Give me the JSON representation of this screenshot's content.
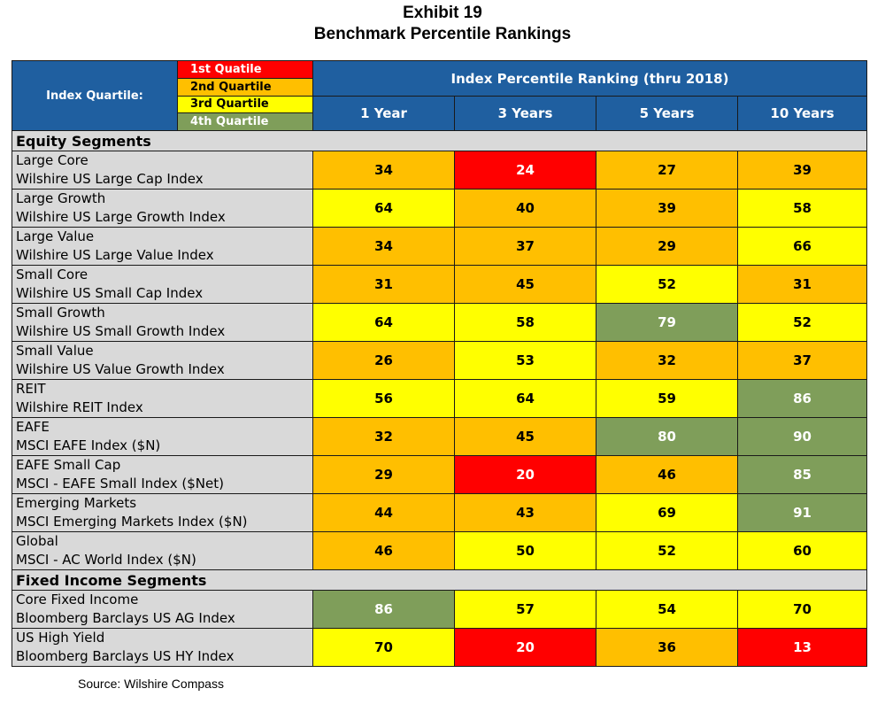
{
  "title": "Exhibit 19",
  "subtitle": "Benchmark Percentile Rankings",
  "header": {
    "quartile_label": "Index Quartile:",
    "legend": [
      "1st Quatile",
      "2nd Quartile",
      "3rd Quartile",
      "4th Quartile"
    ],
    "group_label": "Index Percentile Ranking (thru 2018)",
    "columns": [
      "1 Year",
      "3 Years",
      "5 Years",
      "10 Years"
    ]
  },
  "colors": {
    "q1": "#ff0000",
    "q2": "#ffbf00",
    "q3": "#ffff00",
    "q4": "#7f9e5a",
    "header": "#1f5fa0",
    "label_bg": "#d9d9d9"
  },
  "sections": [
    {
      "label": "Equity Segments",
      "rows": [
        {
          "name": "Large Core",
          "index": "Wilshire US Large Cap Index",
          "values": [
            "34",
            "24",
            "27",
            "39"
          ],
          "quartiles": [
            2,
            1,
            2,
            2
          ]
        },
        {
          "name": "Large Growth",
          "index": "Wilshire US Large Growth Index",
          "values": [
            "64",
            "40",
            "39",
            "58"
          ],
          "quartiles": [
            3,
            2,
            2,
            3
          ]
        },
        {
          "name": "Large Value",
          "index": "Wilshire US Large Value Index",
          "values": [
            "34",
            "37",
            "29",
            "66"
          ],
          "quartiles": [
            2,
            2,
            2,
            3
          ]
        },
        {
          "name": "Small Core",
          "index": "Wilshire US Small Cap Index",
          "values": [
            "31",
            "45",
            "52",
            "31"
          ],
          "quartiles": [
            2,
            2,
            3,
            2
          ]
        },
        {
          "name": "Small Growth",
          "index": "Wilshire US Small Growth Index",
          "values": [
            "64",
            "58",
            "79",
            "52"
          ],
          "quartiles": [
            3,
            3,
            4,
            3
          ]
        },
        {
          "name": "Small Value",
          "index": "Wilshire US Value Growth Index",
          "values": [
            "26",
            "53",
            "32",
            "37"
          ],
          "quartiles": [
            2,
            3,
            2,
            2
          ]
        },
        {
          "name": "REIT",
          "index": "Wilshire REIT Index",
          "values": [
            "56",
            "64",
            "59",
            "86"
          ],
          "quartiles": [
            3,
            3,
            3,
            4
          ]
        },
        {
          "name": "EAFE",
          "index": "MSCI EAFE Index ($N)",
          "values": [
            "32",
            "45",
            "80",
            "90"
          ],
          "quartiles": [
            2,
            2,
            4,
            4
          ]
        },
        {
          "name": "EAFE Small Cap",
          "index": "MSCI - EAFE Small Index ($Net)",
          "values": [
            "29",
            "20",
            "46",
            "85"
          ],
          "quartiles": [
            2,
            1,
            2,
            4
          ]
        },
        {
          "name": "Emerging Markets",
          "index": "MSCI Emerging Markets Index ($N)",
          "values": [
            "44",
            "43",
            "69",
            "91"
          ],
          "quartiles": [
            2,
            2,
            3,
            4
          ]
        },
        {
          "name": "Global",
          "index": "MSCI - AC World Index ($N)",
          "values": [
            "46",
            "50",
            "52",
            "60"
          ],
          "quartiles": [
            2,
            3,
            3,
            3
          ]
        }
      ]
    },
    {
      "label": "Fixed Income Segments",
      "rows": [
        {
          "name": "Core Fixed Income",
          "index": "Bloomberg Barclays US AG Index",
          "values": [
            "86",
            "57",
            "54",
            "70"
          ],
          "quartiles": [
            4,
            3,
            3,
            3
          ]
        },
        {
          "name": "US High Yield",
          "index": "Bloomberg Barclays US HY Index",
          "values": [
            "70",
            "20",
            "36",
            "13"
          ],
          "quartiles": [
            3,
            1,
            2,
            1
          ]
        }
      ]
    }
  ],
  "source": "Source: Wilshire Compass"
}
